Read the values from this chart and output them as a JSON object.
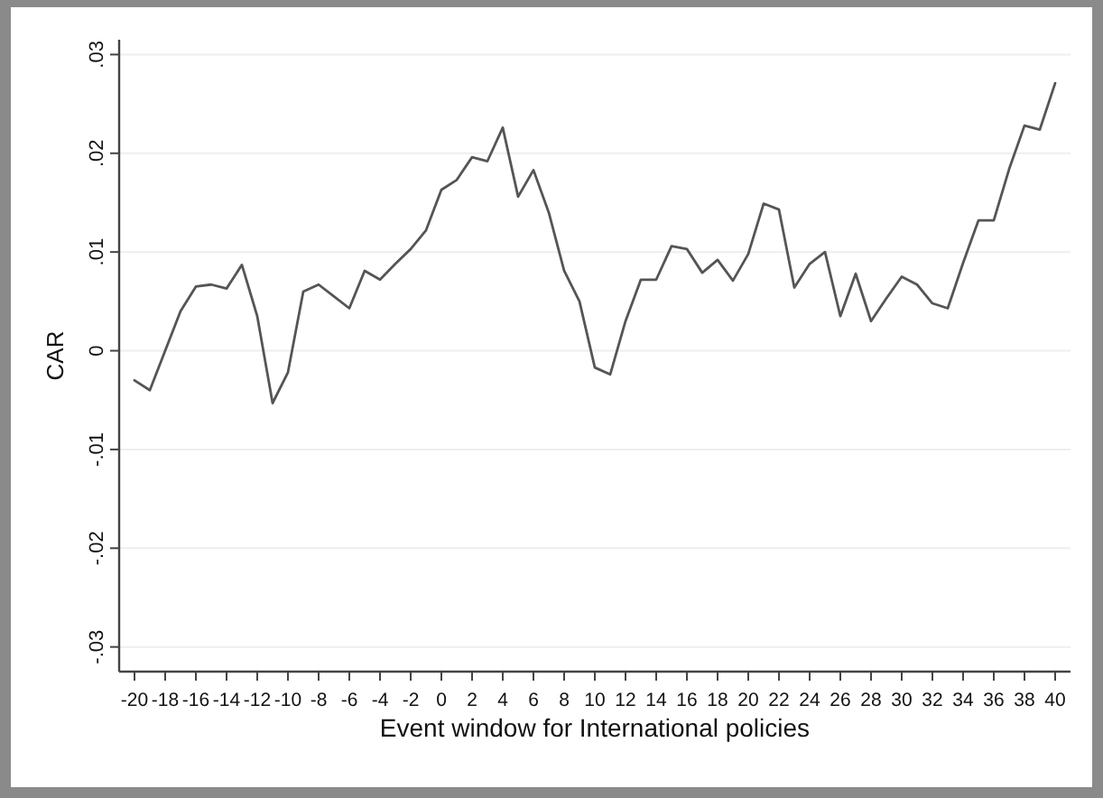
{
  "chart_data": {
    "type": "line",
    "xlabel": "Event window for International policies",
    "ylabel": "CAR",
    "x": [
      -20,
      -19,
      -18,
      -17,
      -16,
      -15,
      -14,
      -13,
      -12,
      -11,
      -10,
      -9,
      -8,
      -7,
      -6,
      -5,
      -4,
      -3,
      -2,
      -1,
      0,
      1,
      2,
      3,
      4,
      5,
      6,
      7,
      8,
      9,
      10,
      11,
      12,
      13,
      14,
      15,
      16,
      17,
      18,
      19,
      20,
      21,
      22,
      23,
      24,
      25,
      26,
      27,
      28,
      29,
      30,
      31,
      32,
      33,
      34,
      35,
      36,
      37,
      38,
      39,
      40
    ],
    "series": [
      {
        "color": "#555555",
        "values": [
          -0.003,
          -0.004,
          0.0,
          0.004,
          0.0065,
          0.0067,
          0.0063,
          0.0087,
          0.0035,
          -0.0053,
          -0.0022,
          0.006,
          0.0067,
          0.0055,
          0.0043,
          0.0081,
          0.0072,
          0.0088,
          0.0103,
          0.0122,
          0.0163,
          0.0173,
          0.0196,
          0.0192,
          0.0226,
          0.0156,
          0.0183,
          0.014,
          0.0081,
          0.005,
          -0.0017,
          -0.0024,
          0.003,
          0.0072,
          0.0072,
          0.0106,
          0.0103,
          0.0079,
          0.0092,
          0.0071,
          0.0098,
          0.0149,
          0.0143,
          0.0064,
          0.0088,
          0.01,
          0.0035,
          0.0078,
          0.003,
          0.0053,
          0.0075,
          0.0067,
          0.0048,
          0.0043,
          0.0089,
          0.0132,
          0.0132,
          0.0184,
          0.0228,
          0.0224,
          0.0271
        ]
      }
    ],
    "xlim": [
      -21,
      41
    ],
    "xticks": [
      -20,
      -18,
      -16,
      -14,
      -12,
      -10,
      -8,
      -6,
      -4,
      -2,
      0,
      2,
      4,
      6,
      8,
      10,
      12,
      14,
      16,
      18,
      20,
      22,
      24,
      26,
      28,
      30,
      32,
      34,
      36,
      38,
      40
    ],
    "ylim": [
      -0.0325,
      0.0315
    ],
    "yticks": [
      {
        "value": -0.03,
        "label": "-.03"
      },
      {
        "value": -0.02,
        "label": "-.02"
      },
      {
        "value": -0.01,
        "label": "-.01"
      },
      0,
      {
        "value": 0.01,
        "label": ".01"
      },
      {
        "value": 0.02,
        "label": ".02"
      },
      {
        "value": 0.03,
        "label": ".03"
      }
    ],
    "grid": "y",
    "line_style": "solid",
    "marker": "none"
  }
}
